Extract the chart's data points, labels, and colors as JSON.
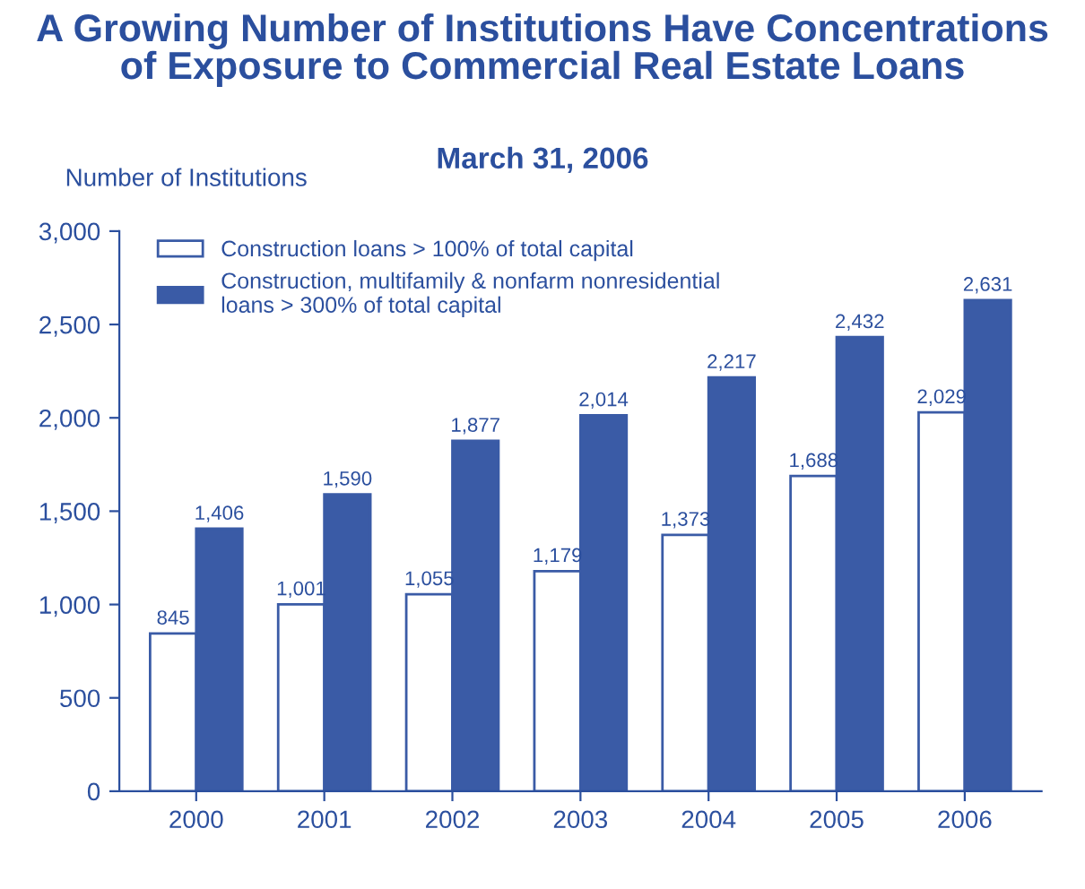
{
  "chart_data": {
    "type": "bar",
    "title": "A Growing Number of Institutions Have Concentrations\nof Exposure to Commercial Real Estate Loans",
    "subtitle": "March 31, 2006",
    "ylabel": "Number of Institutions",
    "categories": [
      "2000",
      "2001",
      "2002",
      "2003",
      "2004",
      "2005",
      "2006"
    ],
    "series": [
      {
        "name": "Construction loans > 100% of total capital",
        "color": "#ffffff",
        "values": [
          845,
          1001,
          1055,
          1179,
          1373,
          1688,
          2029
        ],
        "value_labels": [
          "845",
          "1,001",
          "1,055",
          "1,179",
          "1,373",
          "1,688",
          "2,029"
        ]
      },
      {
        "name": "Construction, multifamily & nonfarm nonresidential\nloans > 300% of total capital",
        "color": "#3a5ba6",
        "values": [
          1406,
          1590,
          1877,
          2014,
          2217,
          2432,
          2631
        ],
        "value_labels": [
          "1,406",
          "1,590",
          "1,877",
          "2,014",
          "2,217",
          "2,432",
          "2,631"
        ]
      }
    ],
    "ylim": [
      0,
      3000
    ],
    "yticks": [
      0,
      500,
      {
        "value": 1000,
        "label": "1,000"
      },
      {
        "value": 1500,
        "label": "1,500"
      },
      {
        "value": 2000,
        "label": "2,000"
      },
      {
        "value": 2500,
        "label": "2,500"
      },
      {
        "value": 3000,
        "label": "3,000"
      }
    ],
    "legend": "top left",
    "grid": false
  }
}
